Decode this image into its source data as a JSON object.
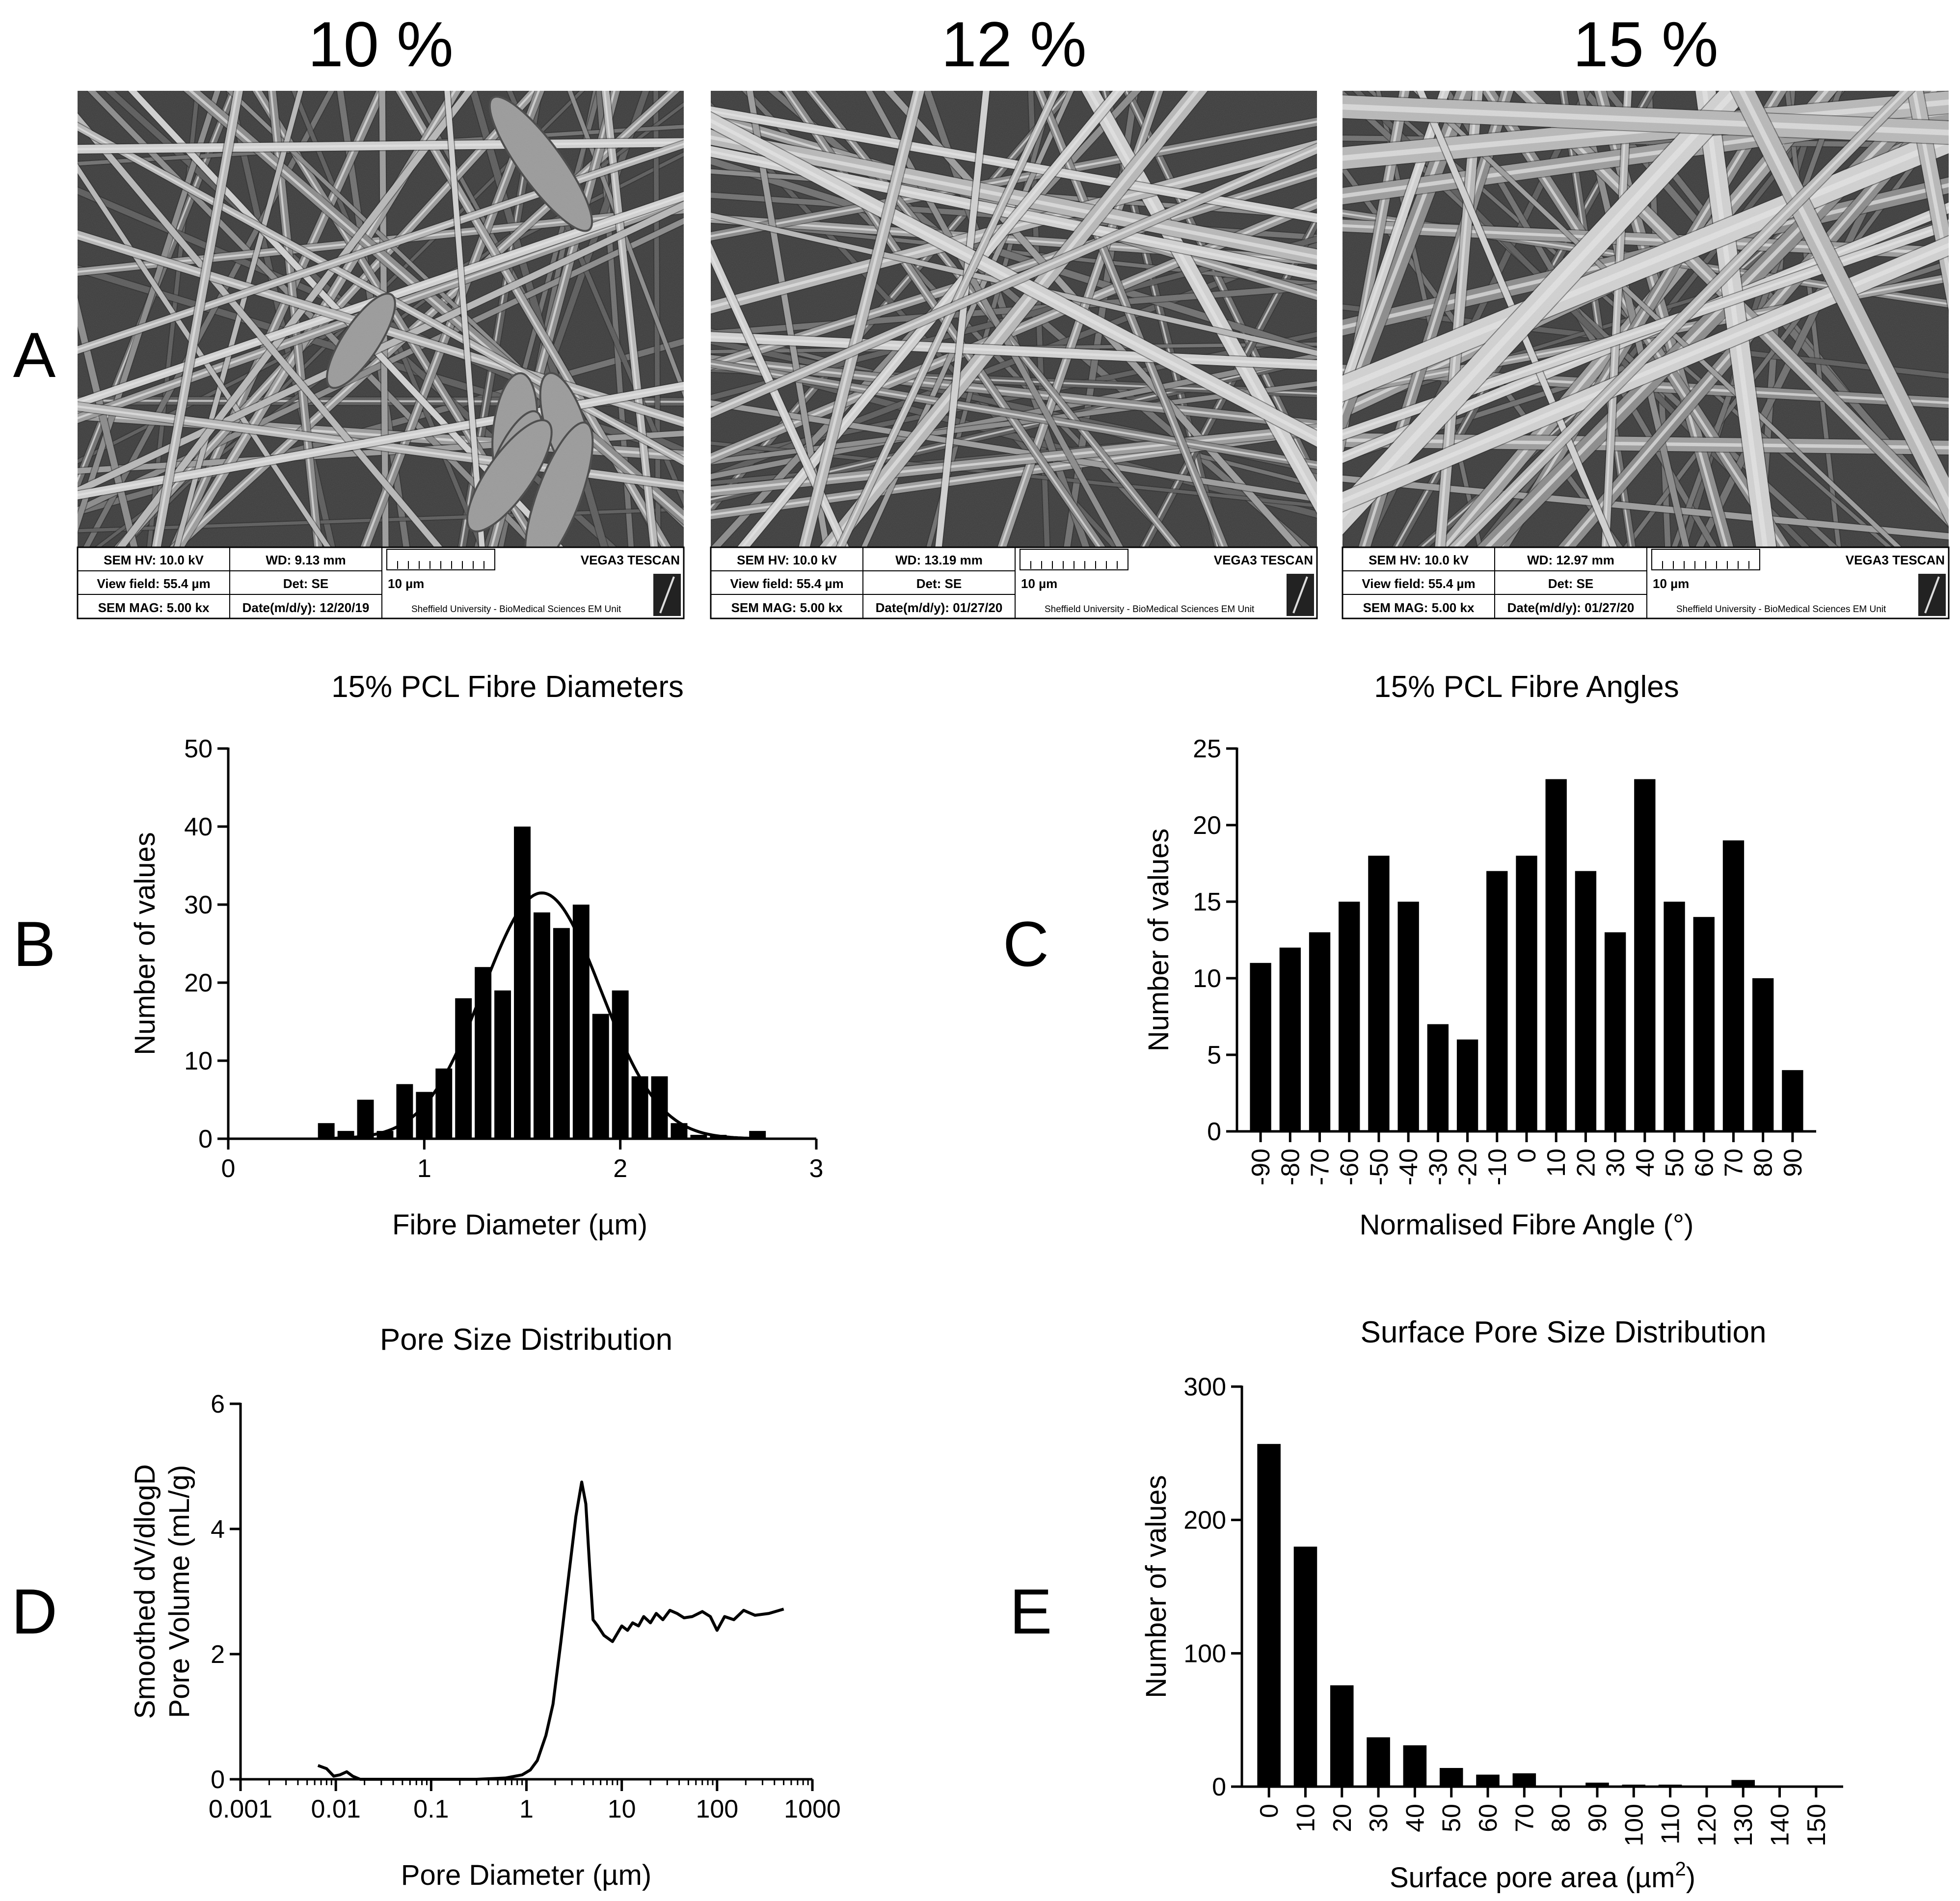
{
  "figure": {
    "panel_letters": [
      "A",
      "B",
      "C",
      "D",
      "E"
    ]
  },
  "sem_panels": [
    {
      "title": "10 %",
      "hv": "SEM HV: 10.0 kV",
      "wd": "WD: 9.13 mm",
      "brand": "VEGA3 TESCAN",
      "view_field": "View field: 55.4 µm",
      "det": "Det: SE",
      "scale": "10 µm",
      "mag": "SEM MAG: 5.00 kx",
      "date": "Date(m/d/y): 12/20/19",
      "facility": "Sheffield University - BioMedical Sciences EM Unit"
    },
    {
      "title": "12 %",
      "hv": "SEM HV: 10.0 kV",
      "wd": "WD: 13.19 mm",
      "brand": "VEGA3 TESCAN",
      "view_field": "View field: 55.4 µm",
      "det": "Det: SE",
      "scale": "10 µm",
      "mag": "SEM MAG: 5.00 kx",
      "date": "Date(m/d/y): 01/27/20",
      "facility": "Sheffield University - BioMedical Sciences EM Unit"
    },
    {
      "title": "15 %",
      "hv": "SEM HV: 10.0 kV",
      "wd": "WD: 12.97 mm",
      "brand": "VEGA3 TESCAN",
      "view_field": "View field: 55.4 µm",
      "det": "Det: SE",
      "scale": "10 µm",
      "mag": "SEM MAG: 5.00 kx",
      "date": "Date(m/d/y): 01/27/20",
      "facility": "Sheffield University - BioMedical Sciences EM Unit"
    }
  ],
  "chart_data": [
    {
      "id": "B",
      "type": "bar",
      "title": "15% PCL Fibre Diameters",
      "xlabel": "Fibre Diameter (µm)",
      "ylabel": "Number of values",
      "xlim": [
        0,
        3
      ],
      "ylim": [
        0,
        50
      ],
      "xticks": [
        0,
        1,
        2,
        3
      ],
      "yticks": [
        0,
        10,
        20,
        30,
        40,
        50
      ],
      "bin_width": 0.1,
      "bin_centers": [
        0.5,
        0.6,
        0.7,
        0.8,
        0.9,
        1.0,
        1.1,
        1.2,
        1.3,
        1.4,
        1.5,
        1.6,
        1.7,
        1.8,
        1.9,
        2.0,
        2.1,
        2.2,
        2.3,
        2.4,
        2.5,
        2.6,
        2.7
      ],
      "values": [
        2,
        1,
        5,
        1,
        7,
        6,
        9,
        18,
        22,
        19,
        40,
        29,
        27,
        30,
        16,
        19,
        8,
        8,
        2,
        0.5,
        0.5,
        0,
        1
      ],
      "fit": {
        "type": "gaussian",
        "amplitude": 31.5,
        "mean": 1.6,
        "sd": 0.3
      }
    },
    {
      "id": "C",
      "type": "bar",
      "title": "15% PCL Fibre Angles",
      "xlabel": "Normalised Fibre Angle (°)",
      "ylabel": "Number of values",
      "ylim": [
        0,
        25
      ],
      "yticks": [
        0,
        5,
        10,
        15,
        20,
        25
      ],
      "categories": [
        "-90",
        "-80",
        "-70",
        "-60",
        "-50",
        "-40",
        "-30",
        "-20",
        "-10",
        "0",
        "10",
        "20",
        "30",
        "40",
        "50",
        "60",
        "70",
        "80",
        "90"
      ],
      "values": [
        11,
        12,
        13,
        15,
        18,
        15,
        7,
        6,
        17,
        18,
        23,
        17,
        13,
        23,
        15,
        14,
        19,
        10,
        4
      ]
    },
    {
      "id": "D",
      "type": "line",
      "title": "Pore Size Distribution",
      "xlabel": "Pore Diameter (µm)",
      "ylabel_lines": [
        "Smoothed dV/dlogD",
        "Pore Volume (mL/g)"
      ],
      "xscale": "log",
      "xlim": [
        0.001,
        1000
      ],
      "ylim": [
        0,
        6
      ],
      "xticks": [
        "0.001",
        "0.01",
        "0.1",
        "1",
        "10",
        "100",
        "1000"
      ],
      "yticks": [
        0,
        2,
        4,
        6
      ],
      "x": [
        0.0065,
        0.008,
        0.0095,
        0.011,
        0.013,
        0.015,
        0.018,
        0.05,
        0.3,
        0.6,
        0.9,
        1.1,
        1.3,
        1.6,
        1.9,
        2.3,
        2.8,
        3.3,
        3.8,
        4.2,
        4.6,
        5.0,
        5.6,
        6.5,
        8.0,
        10,
        11.5,
        13,
        15,
        17,
        20,
        23,
        27,
        32,
        38,
        45,
        55,
        70,
        85,
        100,
        120,
        150,
        190,
        250,
        350,
        500
      ],
      "y": [
        0.22,
        0.17,
        0.05,
        0.07,
        0.12,
        0.05,
        0.0,
        0.0,
        0.0,
        0.02,
        0.07,
        0.15,
        0.3,
        0.7,
        1.2,
        2.2,
        3.3,
        4.2,
        4.75,
        4.4,
        3.4,
        2.55,
        2.45,
        2.3,
        2.2,
        2.45,
        2.38,
        2.5,
        2.45,
        2.6,
        2.5,
        2.65,
        2.55,
        2.7,
        2.65,
        2.58,
        2.6,
        2.68,
        2.6,
        2.38,
        2.6,
        2.55,
        2.7,
        2.62,
        2.65,
        2.72
      ]
    },
    {
      "id": "E",
      "type": "bar",
      "title": "Surface Pore Size Distribution",
      "xlabel": "Surface pore area (µm",
      "xlabel_sup": "2",
      "xlabel_end": ")",
      "ylabel": "Number of values",
      "ylim": [
        0,
        300
      ],
      "yticks": [
        0,
        100,
        200,
        300
      ],
      "categories": [
        "0",
        "10",
        "20",
        "30",
        "40",
        "50",
        "60",
        "70",
        "80",
        "90",
        "100",
        "110",
        "120",
        "130",
        "140",
        "150"
      ],
      "values": [
        257,
        180,
        76,
        37,
        31,
        14,
        9,
        10,
        0,
        3,
        1.5,
        1.5,
        0,
        5,
        0,
        0
      ]
    }
  ]
}
